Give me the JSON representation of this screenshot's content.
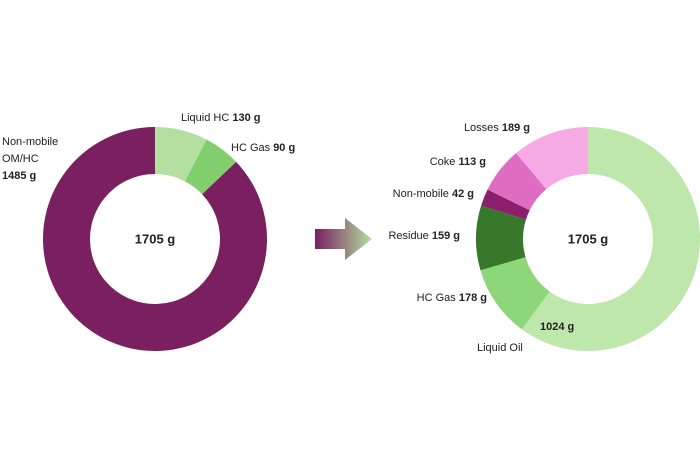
{
  "chart_data": [
    {
      "type": "donut",
      "center_label": "1705 g",
      "categories": [
        "Liquid HC",
        "HC Gas",
        "Non-mobile OM/HC"
      ],
      "values": [
        130,
        90,
        1485
      ],
      "value_labels": [
        "130 g",
        "90 g",
        "1485 g"
      ],
      "colors": [
        "#b3dfa1",
        "#80cf6c",
        "#7a1f5f"
      ]
    },
    {
      "type": "donut",
      "center_label": "1705 g",
      "categories": [
        "Liquid Oil",
        "HC Gas",
        "Residue",
        "Non-mobile",
        "Coke",
        "Losses"
      ],
      "values": [
        1024,
        178,
        159,
        42,
        113,
        189
      ],
      "value_labels": [
        "1024 g",
        "178 g",
        "159 g",
        "42 g",
        "113 g",
        "189 g"
      ],
      "colors": [
        "#bde7ab",
        "#8ed67a",
        "#37782a",
        "#8a1f6c",
        "#df6ec3",
        "#f6a9e2"
      ]
    }
  ]
}
